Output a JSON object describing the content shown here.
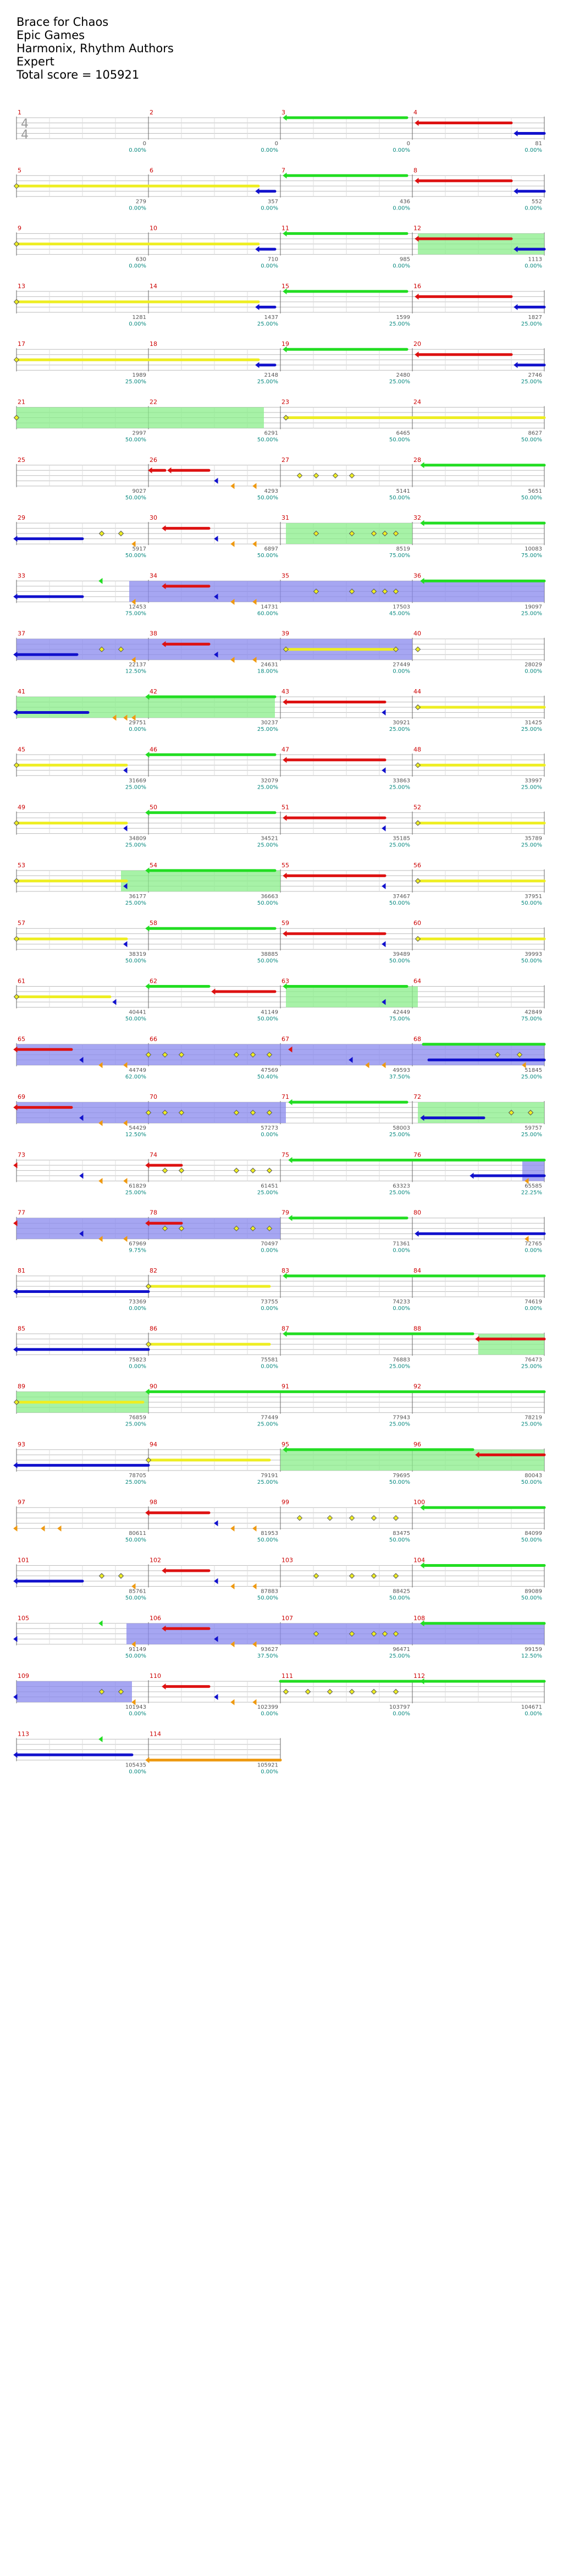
{
  "header": {
    "song_title": "Brace for Chaos",
    "artist": "Epic Games",
    "charter": "Harmonix, Rhythm Authors",
    "difficulty": "Expert",
    "total_score": "Total score = 105921"
  },
  "time_signature": {
    "top": "4",
    "bottom": "4"
  },
  "colors": {
    "green": "#22dd22",
    "red": "#dd1111",
    "yellow": "#eeee22",
    "blue": "#1111cc",
    "orange": "#ee9911",
    "purple": "#990099",
    "overdrive_green": "#8aee8a",
    "overdrive_blue": "#8888ee",
    "bar_line": "#666666",
    "lane_line": "#bbbbbb"
  },
  "measures": [
    {
      "n": "1",
      "score": "0",
      "pct": "0.00%"
    },
    {
      "n": "2",
      "score": "0",
      "pct": "0.00%"
    },
    {
      "n": "3",
      "score": "0",
      "pct": "0.00%"
    },
    {
      "n": "4",
      "score": "81",
      "pct": "0.00%"
    },
    {
      "n": "5",
      "score": "279",
      "pct": "0.00%"
    },
    {
      "n": "6",
      "score": "357",
      "pct": "0.00%"
    },
    {
      "n": "7",
      "score": "436",
      "pct": "0.00%"
    },
    {
      "n": "8",
      "score": "552",
      "pct": "0.00%"
    },
    {
      "n": "9",
      "score": "630",
      "pct": "0.00%"
    },
    {
      "n": "10",
      "score": "710",
      "pct": "0.00%"
    },
    {
      "n": "11",
      "score": "985",
      "pct": "0.00%"
    },
    {
      "n": "12",
      "score": "1113",
      "pct": "0.00%"
    },
    {
      "n": "13",
      "score": "1281",
      "pct": "0.00%"
    },
    {
      "n": "14",
      "score": "1437",
      "pct": "25.00%"
    },
    {
      "n": "15",
      "score": "1599",
      "pct": "25.00%"
    },
    {
      "n": "16",
      "score": "1827",
      "pct": "25.00%"
    },
    {
      "n": "17",
      "score": "1989",
      "pct": "25.00%"
    },
    {
      "n": "18",
      "score": "2148",
      "pct": "25.00%"
    },
    {
      "n": "19",
      "score": "2480",
      "pct": "25.00%"
    },
    {
      "n": "20",
      "score": "2746",
      "pct": "25.00%"
    },
    {
      "n": "21",
      "score": "2997",
      "pct": "50.00%"
    },
    {
      "n": "22",
      "score": "6291",
      "pct": "50.00%"
    },
    {
      "n": "23",
      "score": "6465",
      "pct": "50.00%"
    },
    {
      "n": "24",
      "score": "8627",
      "pct": "50.00%"
    },
    {
      "n": "25",
      "score": "9027",
      "pct": "50.00%"
    },
    {
      "n": "26",
      "score": "4293",
      "pct": "50.00%"
    },
    {
      "n": "27",
      "score": "5141",
      "pct": "50.00%"
    },
    {
      "n": "28",
      "score": "5651",
      "pct": "50.00%"
    },
    {
      "n": "29",
      "score": "5917",
      "pct": "50.00%"
    },
    {
      "n": "30",
      "score": "6897",
      "pct": "50.00%"
    },
    {
      "n": "31",
      "score": "8519",
      "pct": "75.00%"
    },
    {
      "n": "32",
      "score": "10083",
      "pct": "75.00%"
    },
    {
      "n": "33",
      "score": "12453",
      "pct": "75.00%"
    },
    {
      "n": "34",
      "score": "14731",
      "pct": "60.00%"
    },
    {
      "n": "35",
      "score": "17503",
      "pct": "45.00%"
    },
    {
      "n": "36",
      "score": "19097",
      "pct": "25.00%"
    },
    {
      "n": "37",
      "score": "22137",
      "pct": "12.50%"
    },
    {
      "n": "38",
      "score": "24631",
      "pct": "18.00%"
    },
    {
      "n": "39",
      "score": "27449",
      "pct": "0.00%"
    },
    {
      "n": "40",
      "score": "28029",
      "pct": "0.00%"
    },
    {
      "n": "41",
      "score": "29751",
      "pct": "0.00%"
    },
    {
      "n": "42",
      "score": "30237",
      "pct": "25.00%"
    },
    {
      "n": "43",
      "score": "30921",
      "pct": "25.00%"
    },
    {
      "n": "44",
      "score": "31425",
      "pct": "25.00%"
    },
    {
      "n": "45",
      "score": "31669",
      "pct": "25.00%"
    },
    {
      "n": "46",
      "score": "32079",
      "pct": "25.00%"
    },
    {
      "n": "47",
      "score": "33863",
      "pct": "25.00%"
    },
    {
      "n": "48",
      "score": "33997",
      "pct": "25.00%"
    },
    {
      "n": "49",
      "score": "34809",
      "pct": "25.00%"
    },
    {
      "n": "50",
      "score": "34521",
      "pct": "25.00%"
    },
    {
      "n": "51",
      "score": "35185",
      "pct": "25.00%"
    },
    {
      "n": "52",
      "score": "35789",
      "pct": "25.00%"
    },
    {
      "n": "53",
      "score": "36177",
      "pct": "25.00%"
    },
    {
      "n": "54",
      "score": "36663",
      "pct": "50.00%"
    },
    {
      "n": "55",
      "score": "37467",
      "pct": "50.00%"
    },
    {
      "n": "56",
      "score": "37951",
      "pct": "50.00%"
    },
    {
      "n": "57",
      "score": "38319",
      "pct": "50.00%"
    },
    {
      "n": "58",
      "score": "38885",
      "pct": "50.00%"
    },
    {
      "n": "59",
      "score": "39489",
      "pct": "50.00%"
    },
    {
      "n": "60",
      "score": "39993",
      "pct": "50.00%"
    },
    {
      "n": "61",
      "score": "40441",
      "pct": "50.00%"
    },
    {
      "n": "62",
      "score": "41149",
      "pct": "50.00%"
    },
    {
      "n": "63",
      "score": "42449",
      "pct": "75.00%"
    },
    {
      "n": "64",
      "score": "42849",
      "pct": "75.00%"
    },
    {
      "n": "65",
      "score": "44749",
      "pct": "62.00%"
    },
    {
      "n": "66",
      "score": "47569",
      "pct": "50.40%"
    },
    {
      "n": "67",
      "score": "49593",
      "pct": "37.50%"
    },
    {
      "n": "68",
      "score": "51845",
      "pct": "25.00%"
    },
    {
      "n": "69",
      "score": "54429",
      "pct": "12.50%"
    },
    {
      "n": "70",
      "score": "57273",
      "pct": "0.00%"
    },
    {
      "n": "71",
      "score": "58003",
      "pct": "25.00%"
    },
    {
      "n": "72",
      "score": "59757",
      "pct": "25.00%"
    },
    {
      "n": "73",
      "score": "61829",
      "pct": "25.00%"
    },
    {
      "n": "74",
      "score": "61451",
      "pct": "25.00%"
    },
    {
      "n": "75",
      "score": "63323",
      "pct": "25.00%"
    },
    {
      "n": "76",
      "score": "65585",
      "pct": "22.25%"
    },
    {
      "n": "77",
      "score": "67969",
      "pct": "9.75%"
    },
    {
      "n": "78",
      "score": "70497",
      "pct": "0.00%"
    },
    {
      "n": "79",
      "score": "71361",
      "pct": "0.00%"
    },
    {
      "n": "80",
      "score": "72765",
      "pct": "0.00%"
    },
    {
      "n": "81",
      "score": "73369",
      "pct": "0.00%"
    },
    {
      "n": "82",
      "score": "73755",
      "pct": "0.00%"
    },
    {
      "n": "83",
      "score": "74233",
      "pct": "0.00%"
    },
    {
      "n": "84",
      "score": "74619",
      "pct": "0.00%"
    },
    {
      "n": "85",
      "score": "75823",
      "pct": "0.00%"
    },
    {
      "n": "86",
      "score": "75581",
      "pct": "0.00%"
    },
    {
      "n": "87",
      "score": "76883",
      "pct": "25.00%"
    },
    {
      "n": "88",
      "score": "76473",
      "pct": "25.00%"
    },
    {
      "n": "89",
      "score": "76859",
      "pct": "25.00%"
    },
    {
      "n": "90",
      "score": "77449",
      "pct": "25.00%"
    },
    {
      "n": "91",
      "score": "77943",
      "pct": "25.00%"
    },
    {
      "n": "92",
      "score": "78219",
      "pct": "25.00%"
    },
    {
      "n": "93",
      "score": "78705",
      "pct": "25.00%"
    },
    {
      "n": "94",
      "score": "79191",
      "pct": "25.00%"
    },
    {
      "n": "95",
      "score": "79695",
      "pct": "50.00%"
    },
    {
      "n": "96",
      "score": "80043",
      "pct": "50.00%"
    },
    {
      "n": "97",
      "score": "80611",
      "pct": "50.00%"
    },
    {
      "n": "98",
      "score": "81953",
      "pct": "50.00%"
    },
    {
      "n": "99",
      "score": "83475",
      "pct": "50.00%"
    },
    {
      "n": "100",
      "score": "84099",
      "pct": "50.00%"
    },
    {
      "n": "101",
      "score": "85761",
      "pct": "50.00%"
    },
    {
      "n": "102",
      "score": "87883",
      "pct": "50.00%"
    },
    {
      "n": "103",
      "score": "88425",
      "pct": "50.00%"
    },
    {
      "n": "104",
      "score": "89089",
      "pct": "50.00%"
    },
    {
      "n": "105",
      "score": "91149",
      "pct": "50.00%"
    },
    {
      "n": "106",
      "score": "93627",
      "pct": "37.50%"
    },
    {
      "n": "107",
      "score": "96471",
      "pct": "25.00%"
    },
    {
      "n": "108",
      "score": "99159",
      "pct": "12.50%"
    },
    {
      "n": "109",
      "score": "101943",
      "pct": "0.00%"
    },
    {
      "n": "110",
      "score": "102399",
      "pct": "0.00%"
    },
    {
      "n": "111",
      "score": "103797",
      "pct": "0.00%"
    },
    {
      "n": "112",
      "score": "104671",
      "pct": "0.00%"
    },
    {
      "n": "113",
      "score": "105435",
      "pct": "0.00%"
    },
    {
      "n": "114",
      "score": "105921",
      "pct": "0.00%"
    }
  ]
}
